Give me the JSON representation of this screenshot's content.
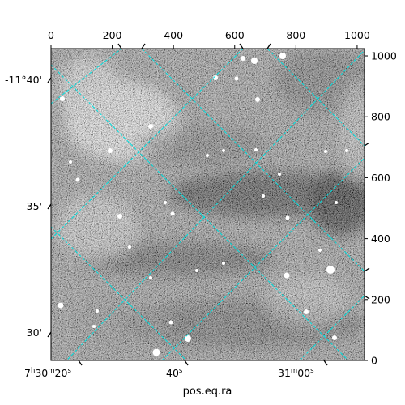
{
  "chart_data": {
    "type": "heatmap",
    "title": "",
    "xlabel": "pos.eq.ra",
    "ylabel": "",
    "colormap": "grayscale",
    "pixel_axes": {
      "x_ticks": [
        0,
        200,
        400,
        600,
        800,
        1000
      ],
      "x_tick_labels": [
        "0",
        "200",
        "400",
        "600",
        "800",
        "1000"
      ],
      "x_range": [
        0,
        1024
      ],
      "y_ticks": [
        0,
        200,
        400,
        600,
        800,
        1000
      ],
      "y_tick_labels": [
        "0",
        "200",
        "400",
        "600",
        "800",
        "1000"
      ],
      "y_range": [
        0,
        1024
      ]
    },
    "world_axes": {
      "ra_tick_labels": [
        {
          "pre": "7",
          "h": "h",
          "mid": "30",
          "m": "m",
          "post": "20",
          "s": "s"
        },
        {
          "pre": "",
          "h": "",
          "mid": "",
          "m": "",
          "post": "40",
          "s": "s"
        },
        {
          "pre": "",
          "h": "",
          "mid": "31",
          "m": "m",
          "post": "00",
          "s": "s"
        }
      ],
      "dec_tick_labels": [
        "-11°40'",
        "35'",
        "30'"
      ]
    },
    "grid": true,
    "grid_color": "#00e5e5"
  },
  "colors": {
    "background": "#ffffff",
    "frame": "#000000",
    "grid": "#00e5e5"
  }
}
